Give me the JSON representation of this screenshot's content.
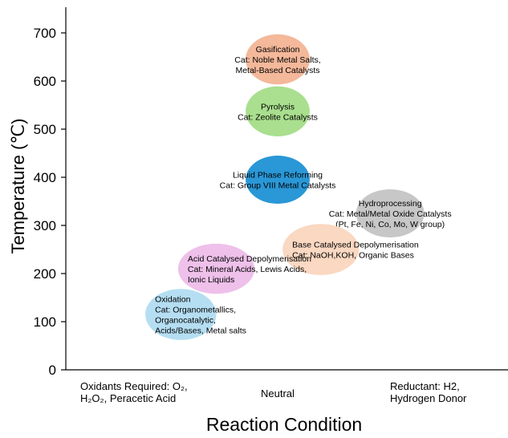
{
  "chart_data": {
    "type": "bubble-region",
    "ylabel": "Temperature (℃)",
    "xlabel": "Reaction Condition",
    "ylim": [
      0,
      700
    ],
    "yticks": [
      0,
      100,
      200,
      300,
      400,
      500,
      600,
      700
    ],
    "x_categories": [
      {
        "lines": [
          "Oxidants Required: O₂,",
          "H₂O₂, Peracetic Acid"
        ]
      },
      {
        "lines": [
          "Neutral"
        ]
      },
      {
        "lines": [
          "Reductant: H2,",
          "Hydrogen Donor"
        ]
      }
    ],
    "regions": [
      {
        "name": "Gasification",
        "lines": [
          "Gasification",
          "Cat: Noble Metal Salts,",
          "Metal-Based Catalysts"
        ],
        "x": 1.0,
        "y": 645,
        "y_span": 52,
        "x_span": 0.47,
        "color": "#f4b89a",
        "align": "center"
      },
      {
        "name": "Pyrolysis",
        "lines": [
          "Pyrolysis",
          "Cat: Zeolite Catalysts"
        ],
        "x": 1.0,
        "y": 537,
        "y_span": 52,
        "x_span": 0.47,
        "color": "#a9df8e",
        "align": "center"
      },
      {
        "name": "Liquid Phase Reforming",
        "lines": [
          "Liquid Phase Reforming",
          "Cat: Group VIII Metal Catalysts"
        ],
        "x": 1.0,
        "y": 395,
        "y_span": 50,
        "x_span": 0.47,
        "color": "#2a97d6",
        "align": "center"
      },
      {
        "name": "Hydroprocessing",
        "lines": [
          "Hydroprocessing",
          "Cat: Metal/Metal  Oxide Catalysts",
          "(Pt, Fe, Ni, Co, Mo, W group)"
        ],
        "x": 1.73,
        "y": 325,
        "y_span": 50,
        "x_span": 0.5,
        "color": "#c7c7c7",
        "align": "center"
      },
      {
        "name": "Base Catalysed Depolymerisation",
        "lines": [
          "Base Catalysed Depolymerisation",
          "Cat: NaOH,KOH,  Organic Bases"
        ],
        "x": 1.28,
        "y": 250,
        "y_span": 53,
        "x_span": 0.56,
        "color": "#fad8c2",
        "align": "left"
      },
      {
        "name": "Acid Catalysed Depolymerisation",
        "lines": [
          "Acid Catalysed Depolymerisation",
          "Cat: Mineral Acids, Lewis Acids,",
          "Ionic Liquids"
        ],
        "x": 0.55,
        "y": 210,
        "y_span": 52,
        "x_span": 0.56,
        "color": "#eec0ea",
        "align": "left"
      },
      {
        "name": "Oxidation",
        "lines": [
          "Oxidation",
          "Cat: Organometallics,",
          "Organocatalytic,",
          "Acids/Bases, Metal salts"
        ],
        "x": 0.29,
        "y": 115,
        "y_span": 53,
        "x_span": 0.52,
        "color": "#b5def2",
        "align": "left"
      }
    ]
  }
}
